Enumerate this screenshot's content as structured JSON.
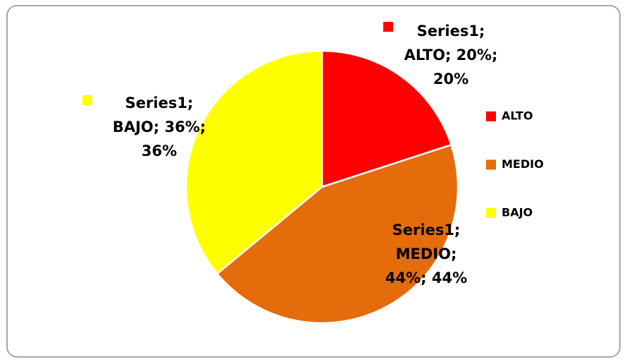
{
  "chart_data": {
    "type": "pie",
    "categories": [
      "ALTO",
      "MEDIO",
      "BAJO"
    ],
    "values": [
      20,
      44,
      36
    ],
    "value_labels": [
      [
        "Series1;",
        "ALTO; 20%;",
        "20%"
      ],
      [
        "Series1;",
        "MEDIO;",
        "44%; 44%"
      ],
      [
        "Series1;",
        "BAJO; 36%;",
        "36%"
      ]
    ],
    "colors": [
      "#ff0000",
      "#e46c0a",
      "#ffff00"
    ],
    "legend": "right"
  }
}
